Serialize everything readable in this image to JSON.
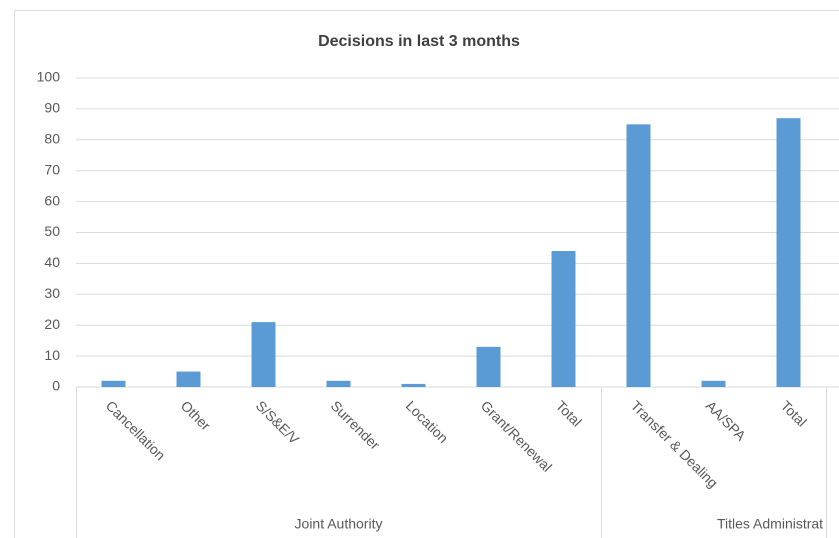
{
  "chart_data": {
    "type": "bar",
    "title": "Decisions in last 3 months",
    "groups": [
      {
        "name": "Joint Authority",
        "categories": [
          "Cancellation",
          "Other",
          "S/S&E/V",
          "Surrender",
          "Location",
          "Grant/Renewal",
          "Total"
        ]
      },
      {
        "name": "Titles Administrat",
        "categories": [
          "Transfer & Dealing",
          "AA/SPA",
          "Total"
        ]
      }
    ],
    "values": [
      2,
      5,
      21,
      2,
      1,
      13,
      44,
      85,
      2,
      87
    ],
    "color": "#5b9bd5",
    "ylim": [
      0,
      100
    ],
    "yticks": [
      0,
      10,
      20,
      30,
      40,
      50,
      60,
      70,
      80,
      90,
      100
    ],
    "grid": true
  }
}
